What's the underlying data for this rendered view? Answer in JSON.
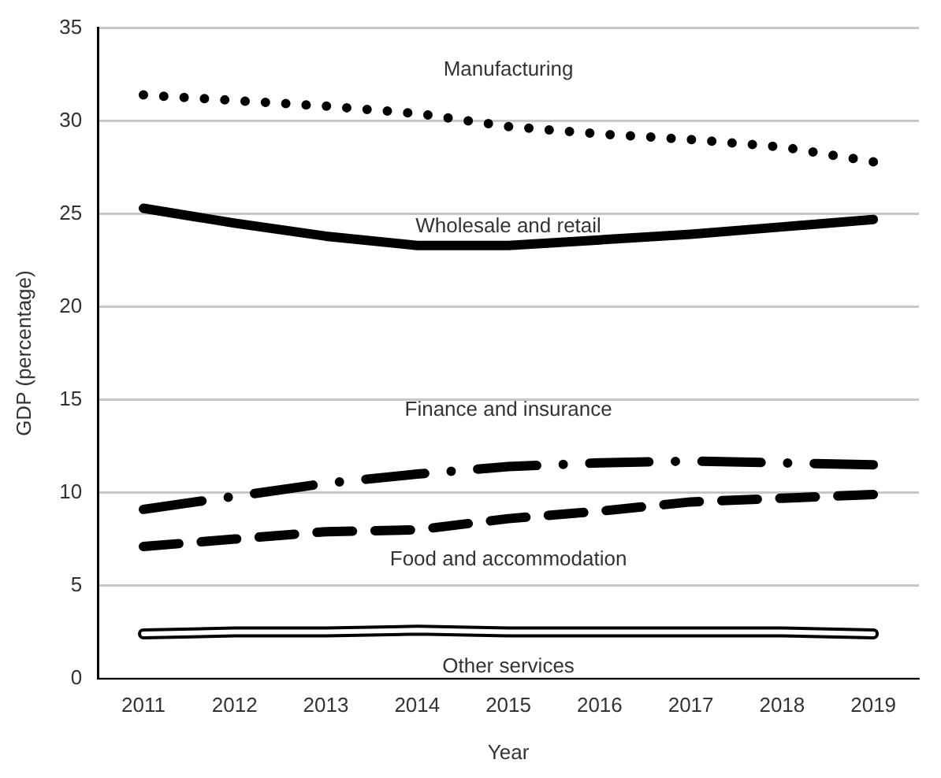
{
  "chart_data": {
    "type": "line",
    "xlabel": "Year",
    "ylabel": "GDP (percentage)",
    "categories": [
      "2011",
      "2012",
      "2013",
      "2014",
      "2015",
      "2016",
      "2017",
      "2018",
      "2019"
    ],
    "series": [
      {
        "name": "Manufacturing",
        "color": "#000000",
        "line_style": "dotted",
        "values": [
          31.4,
          31.1,
          30.8,
          30.4,
          29.7,
          29.3,
          29.0,
          28.6,
          27.8
        ]
      },
      {
        "name": "Wholesale and retail",
        "color": "#000000",
        "line_style": "solid",
        "values": [
          25.3,
          24.5,
          23.8,
          23.3,
          23.3,
          23.6,
          23.9,
          24.3,
          24.7
        ]
      },
      {
        "name": "Finance and insurance",
        "color": "#000000",
        "line_style": "dashdot",
        "values": [
          9.1,
          9.8,
          10.5,
          11.0,
          11.4,
          11.6,
          11.7,
          11.6,
          11.5
        ]
      },
      {
        "name": "Food and accommodation",
        "color": "#000000",
        "line_style": "dashed",
        "values": [
          7.1,
          7.5,
          7.9,
          8.0,
          8.6,
          9.0,
          9.5,
          9.7,
          9.9
        ]
      },
      {
        "name": "Other services",
        "color": "#000000",
        "line_style": "solid",
        "values": [
          2.4,
          2.5,
          2.5,
          2.6,
          2.5,
          2.5,
          2.5,
          2.5,
          2.4
        ]
      }
    ],
    "ylim": [
      0,
      35
    ],
    "yticks": [
      0,
      5,
      10,
      15,
      20,
      25,
      30,
      35
    ],
    "grid": "y",
    "legend": false,
    "marker": "none"
  }
}
